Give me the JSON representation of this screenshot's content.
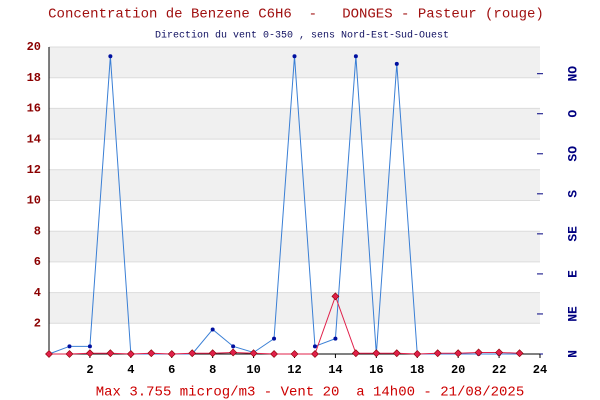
{
  "chart_data": {
    "type": "line",
    "title": "Concentration de Benzene C6H6  -   DONGES - Pasteur (rouge)",
    "subtitle": "Direction du vent 0-350 , sens Nord-Est-Sud-Ouest",
    "footer": "Max 3.755 microg/m3 - Vent 20  a 14h00 - 21/08/2025",
    "x": [
      0,
      1,
      2,
      3,
      4,
      5,
      6,
      7,
      8,
      9,
      10,
      11,
      12,
      13,
      14,
      15,
      16,
      17,
      18,
      19,
      20,
      21,
      22,
      23
    ],
    "series": [
      {
        "color": "#3a7fd5",
        "values": [
          0,
          0.5,
          0.5,
          19.4,
          0,
          0,
          0,
          0,
          1.6,
          0.5,
          0.1,
          1.0,
          19.4,
          0.5,
          1.0,
          19.4,
          0,
          18.9,
          0,
          0,
          0,
          0,
          0,
          0
        ]
      },
      {
        "color": "#e0204a",
        "values": [
          0,
          0,
          0.05,
          0.05,
          0,
          0.05,
          0,
          0.05,
          0.05,
          0.1,
          0.05,
          0,
          0,
          0,
          3.755,
          0.05,
          0.05,
          0.05,
          0,
          0.05,
          0.05,
          0.1,
          0.1,
          0.05
        ]
      }
    ],
    "xlim": [
      0,
      24
    ],
    "xticks": [
      2,
      4,
      6,
      8,
      10,
      12,
      14,
      16,
      18,
      20,
      22,
      24
    ],
    "ylim": [
      0,
      20
    ],
    "yticks": [
      2,
      4,
      6,
      8,
      10,
      12,
      14,
      16,
      18,
      20
    ],
    "y2lim": [
      0,
      345
    ],
    "y2ticks": [
      {
        "value": 0,
        "label": "N"
      },
      {
        "value": 45,
        "label": "NE"
      },
      {
        "value": 90,
        "label": "E"
      },
      {
        "value": 135,
        "label": "SE"
      },
      {
        "value": 180,
        "label": "S"
      },
      {
        "value": 225,
        "label": "SO"
      },
      {
        "value": 270,
        "label": "O"
      },
      {
        "value": 315,
        "label": "NO"
      }
    ],
    "grid": true
  }
}
